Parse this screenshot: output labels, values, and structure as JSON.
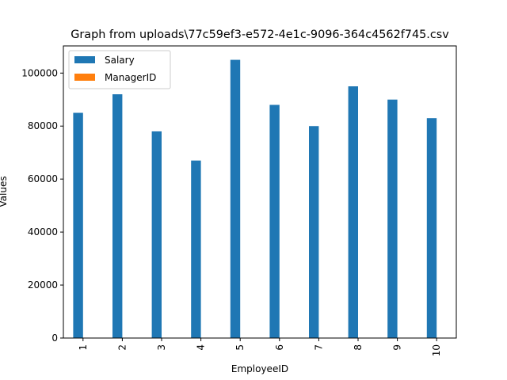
{
  "chart_data": {
    "type": "bar",
    "title": "Graph from uploads\\77c59ef3-e572-4e1c-9096-364c4562f745.csv",
    "xlabel": "EmployeeID",
    "ylabel": "Values",
    "categories": [
      "1",
      "2",
      "3",
      "4",
      "5",
      "6",
      "7",
      "8",
      "9",
      "10"
    ],
    "series": [
      {
        "name": "Salary",
        "color": "#1f77b4",
        "values": [
          85000,
          92000,
          78000,
          67000,
          105000,
          88000,
          80000,
          95000,
          90000,
          83000
        ]
      },
      {
        "name": "ManagerID",
        "color": "#ff7f0e",
        "values": [
          0,
          1,
          1,
          2,
          0,
          5,
          5,
          0,
          8,
          8
        ]
      }
    ],
    "ylim": [
      0,
      110250
    ],
    "yticks": [
      0,
      20000,
      40000,
      60000,
      80000,
      100000
    ],
    "ytick_labels": [
      "0",
      "20000",
      "40000",
      "60000",
      "80000",
      "100000"
    ],
    "legend_position": "top-left",
    "grid": false
  }
}
